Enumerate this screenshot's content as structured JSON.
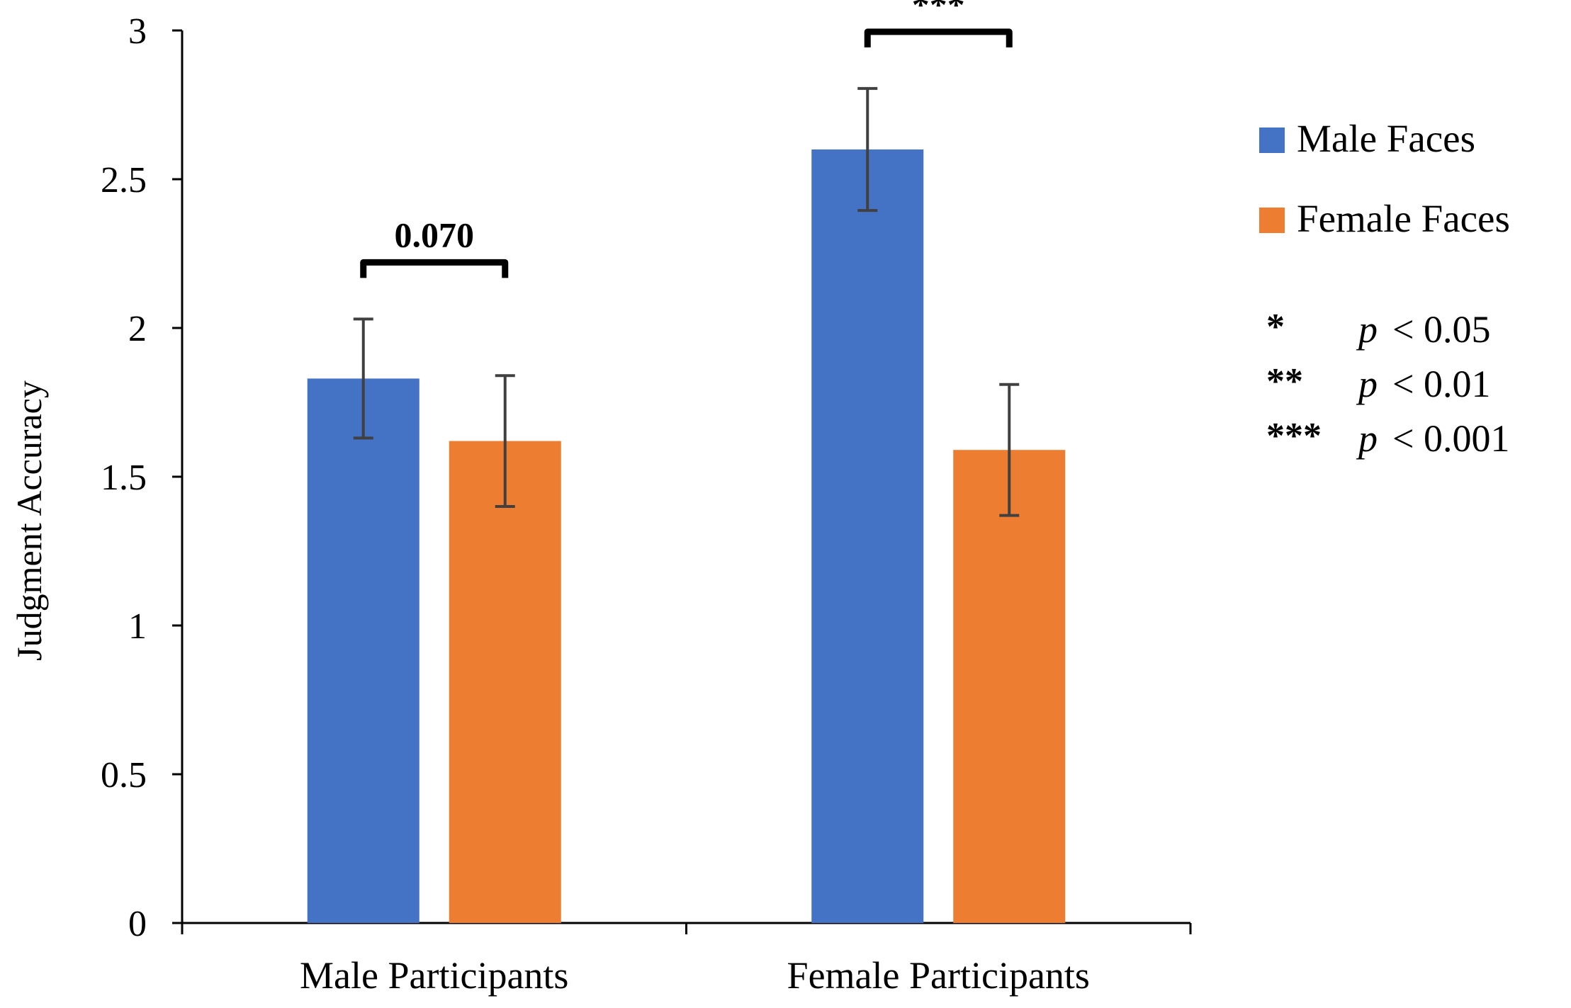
{
  "chart_data": {
    "type": "bar",
    "title": "",
    "xlabel": "",
    "ylabel": "Judgment Accuracy",
    "ylim": [
      0,
      3
    ],
    "yticks": [
      "0",
      "0.5",
      "1",
      "1.5",
      "2",
      "2.5",
      "3"
    ],
    "categories": [
      "Male Participants",
      "Female Participants"
    ],
    "series": [
      {
        "name": "Male Faces",
        "color": "#4472C4",
        "values": [
          1.83,
          2.6
        ],
        "errors": [
          0.2,
          0.205
        ]
      },
      {
        "name": "Female Faces",
        "color": "#ED7D31",
        "values": [
          1.62,
          1.59
        ],
        "errors": [
          0.22,
          0.22
        ]
      }
    ],
    "significance": [
      {
        "category_index": 0,
        "label": "0.070"
      },
      {
        "category_index": 1,
        "label": "***"
      }
    ],
    "legend": {
      "position": "right"
    },
    "significance_key": [
      {
        "stars": "*",
        "p_label": "p",
        "threshold": "< 0.05"
      },
      {
        "stars": "**",
        "p_label": "p",
        "threshold": "< 0.01"
      },
      {
        "stars": "***",
        "p_label": "p",
        "threshold": "< 0.001"
      }
    ],
    "grid": false
  }
}
